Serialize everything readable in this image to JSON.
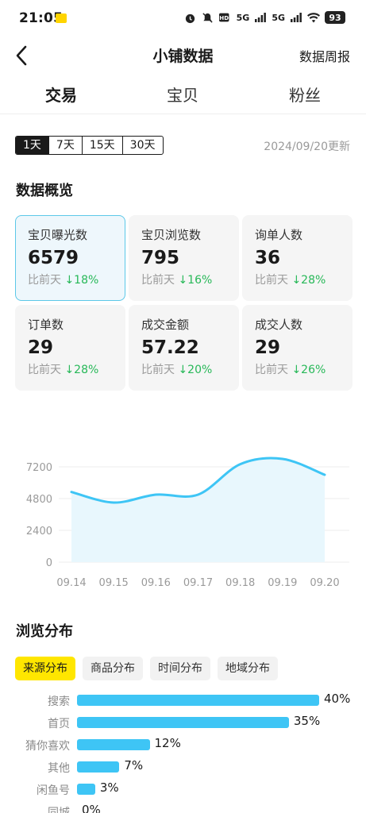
{
  "status": {
    "time": "21:05",
    "battery": "93",
    "network1": "5G",
    "network2": "5G"
  },
  "nav": {
    "title": "小铺数据",
    "right": "数据周报"
  },
  "tabs": [
    "交易",
    "宝贝",
    "粉丝"
  ],
  "range": {
    "options": [
      "1天",
      "7天",
      "15天",
      "30天"
    ],
    "selected": "1天"
  },
  "updated": "2024/09/20更新",
  "overview": {
    "title": "数据概览",
    "compare_label": "比前天",
    "cards": [
      {
        "label": "宝贝曝光数",
        "value": "6579",
        "change": "↓18%"
      },
      {
        "label": "宝贝浏览数",
        "value": "795",
        "change": "↓16%"
      },
      {
        "label": "询单人数",
        "value": "36",
        "change": "↓28%"
      },
      {
        "label": "订单数",
        "value": "29",
        "change": "↓28%"
      },
      {
        "label": "成交金额",
        "value": "57.22",
        "change": "↓20%"
      },
      {
        "label": "成交人数",
        "value": "29",
        "change": "↓26%"
      }
    ]
  },
  "chart_data": {
    "type": "area",
    "x": [
      "09.14",
      "09.15",
      "09.16",
      "09.17",
      "09.18",
      "09.19",
      "09.20"
    ],
    "values": [
      5300,
      4500,
      5100,
      5100,
      7400,
      7800,
      6600
    ],
    "yticks": [
      0,
      2400,
      4800,
      7200
    ],
    "ylim": [
      0,
      9600
    ],
    "grid": true,
    "colors": {
      "line": "#3ec5f5",
      "fill": "#e8f7fd"
    }
  },
  "distribution": {
    "title": "浏览分布",
    "tabs": [
      "来源分布",
      "商品分布",
      "时间分布",
      "地域分布"
    ],
    "selected": "来源分布",
    "rows": [
      {
        "label": "搜索",
        "value": 40,
        "text": "40%"
      },
      {
        "label": "首页",
        "value": 35,
        "text": "35%"
      },
      {
        "label": "猜你喜欢",
        "value": 12,
        "text": "12%"
      },
      {
        "label": "其他",
        "value": 7,
        "text": "7%"
      },
      {
        "label": "闲鱼号",
        "value": 3,
        "text": "3%"
      },
      {
        "label": "同城",
        "value": 0,
        "text": "0%"
      }
    ]
  }
}
